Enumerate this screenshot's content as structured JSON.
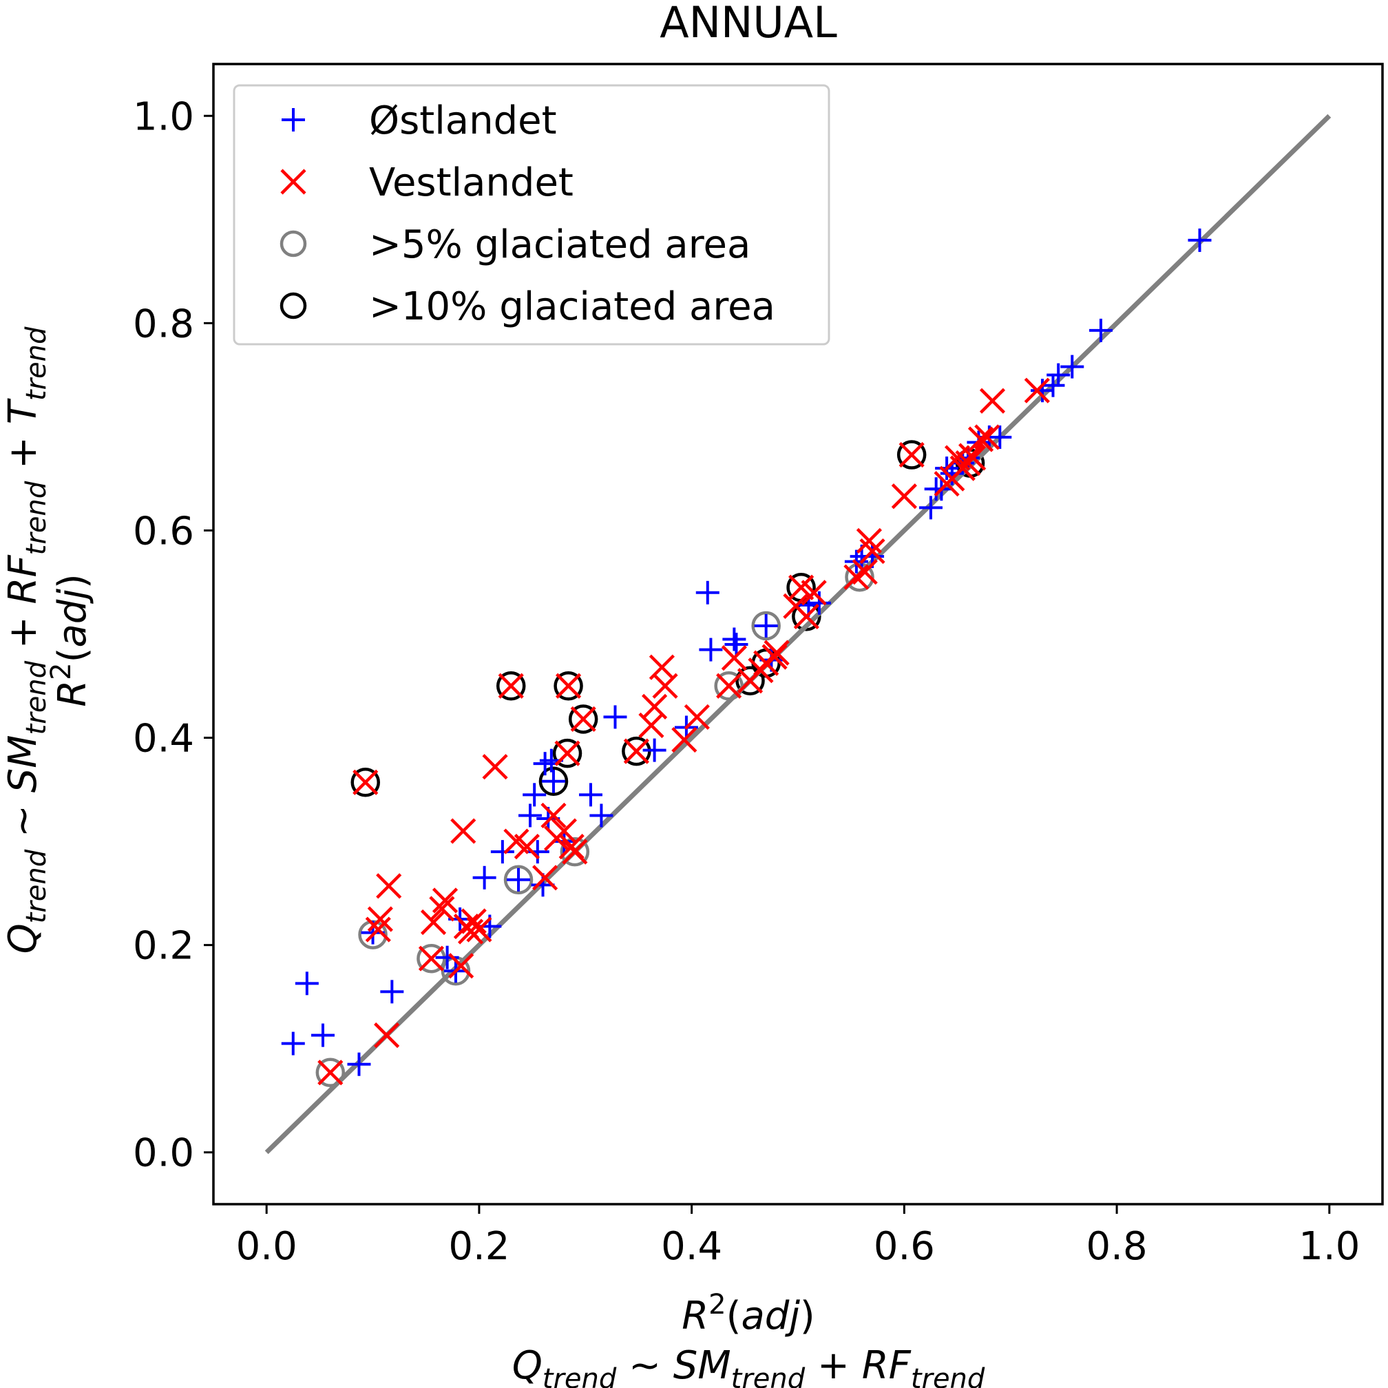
{
  "chart_data": {
    "type": "scatter",
    "title": "ANNUAL",
    "xlabel": {
      "line1": "R²(adj)",
      "line2": "Q_trend ~ SM_trend + RF_trend"
    },
    "ylabel": {
      "line1": "R²(adj)",
      "line2": "Q_trend ~ SM_trend + RF_trend + T_trend"
    },
    "xlim": [
      -0.05,
      1.05
    ],
    "ylim": [
      -0.05,
      1.05
    ],
    "xticks": [
      "0.0",
      "0.2",
      "0.4",
      "0.6",
      "0.8",
      "1.0"
    ],
    "yticks": [
      "0.0",
      "0.2",
      "0.4",
      "0.6",
      "0.8",
      "1.0"
    ],
    "legend": {
      "position": "top-left",
      "entries": [
        {
          "label": "Østlandet",
          "marker": "plus",
          "color": "#0000ff"
        },
        {
          "label": "Vestlandet",
          "marker": "x",
          "color": "#ff0000"
        },
        {
          "label": ">5% glaciated area",
          "marker": "circle",
          "color": "#808080"
        },
        {
          "label": ">10% glaciated area",
          "marker": "circle",
          "color": "#000000"
        }
      ]
    },
    "reference_line": {
      "x": [
        0,
        1
      ],
      "y": [
        0,
        1
      ],
      "color": "#808080"
    },
    "series": [
      {
        "name": "Østlandet",
        "marker": "plus",
        "color": "#0000ff",
        "points": [
          [
            0.025,
            0.105
          ],
          [
            0.038,
            0.163
          ],
          [
            0.053,
            0.113
          ],
          [
            0.087,
            0.085
          ],
          [
            0.1,
            0.212
          ],
          [
            0.118,
            0.155
          ],
          [
            0.17,
            0.188
          ],
          [
            0.178,
            0.175
          ],
          [
            0.182,
            0.225
          ],
          [
            0.205,
            0.265
          ],
          [
            0.21,
            0.218
          ],
          [
            0.222,
            0.29
          ],
          [
            0.237,
            0.263
          ],
          [
            0.248,
            0.325
          ],
          [
            0.252,
            0.345
          ],
          [
            0.255,
            0.29
          ],
          [
            0.26,
            0.258
          ],
          [
            0.262,
            0.375
          ],
          [
            0.265,
            0.322
          ],
          [
            0.268,
            0.378
          ],
          [
            0.27,
            0.358
          ],
          [
            0.28,
            0.3
          ],
          [
            0.305,
            0.345
          ],
          [
            0.315,
            0.325
          ],
          [
            0.328,
            0.42
          ],
          [
            0.365,
            0.388
          ],
          [
            0.395,
            0.41
          ],
          [
            0.415,
            0.54
          ],
          [
            0.418,
            0.485
          ],
          [
            0.44,
            0.495
          ],
          [
            0.442,
            0.49
          ],
          [
            0.47,
            0.508
          ],
          [
            0.475,
            0.475
          ],
          [
            0.51,
            0.528
          ],
          [
            0.52,
            0.53
          ],
          [
            0.555,
            0.57
          ],
          [
            0.56,
            0.575
          ],
          [
            0.57,
            0.575
          ],
          [
            0.625,
            0.622
          ],
          [
            0.63,
            0.64
          ],
          [
            0.635,
            0.64
          ],
          [
            0.64,
            0.66
          ],
          [
            0.645,
            0.655
          ],
          [
            0.655,
            0.665
          ],
          [
            0.66,
            0.67
          ],
          [
            0.67,
            0.685
          ],
          [
            0.68,
            0.69
          ],
          [
            0.69,
            0.69
          ],
          [
            0.73,
            0.735
          ],
          [
            0.74,
            0.74
          ],
          [
            0.745,
            0.75
          ],
          [
            0.758,
            0.758
          ],
          [
            0.785,
            0.793
          ],
          [
            0.878,
            0.88
          ]
        ]
      },
      {
        "name": "Vestlandet",
        "marker": "x",
        "color": "#ff0000",
        "points": [
          [
            0.06,
            0.077
          ],
          [
            0.093,
            0.357
          ],
          [
            0.105,
            0.215
          ],
          [
            0.107,
            0.225
          ],
          [
            0.113,
            0.113
          ],
          [
            0.115,
            0.257
          ],
          [
            0.155,
            0.187
          ],
          [
            0.157,
            0.222
          ],
          [
            0.165,
            0.235
          ],
          [
            0.168,
            0.243
          ],
          [
            0.183,
            0.18
          ],
          [
            0.185,
            0.31
          ],
          [
            0.188,
            0.218
          ],
          [
            0.192,
            0.213
          ],
          [
            0.195,
            0.223
          ],
          [
            0.2,
            0.215
          ],
          [
            0.215,
            0.372
          ],
          [
            0.23,
            0.45
          ],
          [
            0.235,
            0.3
          ],
          [
            0.245,
            0.295
          ],
          [
            0.262,
            0.265
          ],
          [
            0.27,
            0.325
          ],
          [
            0.273,
            0.303
          ],
          [
            0.28,
            0.31
          ],
          [
            0.283,
            0.385
          ],
          [
            0.284,
            0.45
          ],
          [
            0.287,
            0.295
          ],
          [
            0.29,
            0.29
          ],
          [
            0.298,
            0.418
          ],
          [
            0.348,
            0.387
          ],
          [
            0.362,
            0.412
          ],
          [
            0.365,
            0.43
          ],
          [
            0.372,
            0.468
          ],
          [
            0.375,
            0.45
          ],
          [
            0.393,
            0.398
          ],
          [
            0.405,
            0.42
          ],
          [
            0.435,
            0.45
          ],
          [
            0.44,
            0.477
          ],
          [
            0.455,
            0.455
          ],
          [
            0.465,
            0.465
          ],
          [
            0.47,
            0.472
          ],
          [
            0.478,
            0.478
          ],
          [
            0.48,
            0.482
          ],
          [
            0.498,
            0.527
          ],
          [
            0.503,
            0.545
          ],
          [
            0.508,
            0.517
          ],
          [
            0.515,
            0.54
          ],
          [
            0.555,
            0.555
          ],
          [
            0.563,
            0.56
          ],
          [
            0.567,
            0.59
          ],
          [
            0.57,
            0.58
          ],
          [
            0.6,
            0.633
          ],
          [
            0.607,
            0.673
          ],
          [
            0.64,
            0.645
          ],
          [
            0.645,
            0.65
          ],
          [
            0.65,
            0.67
          ],
          [
            0.655,
            0.66
          ],
          [
            0.66,
            0.665
          ],
          [
            0.663,
            0.672
          ],
          [
            0.665,
            0.67
          ],
          [
            0.672,
            0.688
          ],
          [
            0.678,
            0.69
          ],
          [
            0.683,
            0.725
          ],
          [
            0.725,
            0.735
          ]
        ]
      },
      {
        "name": ">5% glaciated area",
        "marker": "circle",
        "color": "#808080",
        "points": [
          [
            0.06,
            0.077
          ],
          [
            0.1,
            0.21
          ],
          [
            0.155,
            0.187
          ],
          [
            0.178,
            0.175
          ],
          [
            0.237,
            0.263
          ],
          [
            0.29,
            0.29
          ],
          [
            0.435,
            0.45
          ],
          [
            0.47,
            0.508
          ],
          [
            0.558,
            0.555
          ]
        ]
      },
      {
        "name": ">10% glaciated area",
        "marker": "circle",
        "color": "#000000",
        "points": [
          [
            0.093,
            0.357
          ],
          [
            0.23,
            0.45
          ],
          [
            0.27,
            0.358
          ],
          [
            0.284,
            0.45
          ],
          [
            0.283,
            0.385
          ],
          [
            0.298,
            0.418
          ],
          [
            0.348,
            0.387
          ],
          [
            0.455,
            0.455
          ],
          [
            0.47,
            0.472
          ],
          [
            0.503,
            0.545
          ],
          [
            0.508,
            0.517
          ],
          [
            0.607,
            0.673
          ],
          [
            0.662,
            0.665
          ]
        ]
      }
    ]
  }
}
